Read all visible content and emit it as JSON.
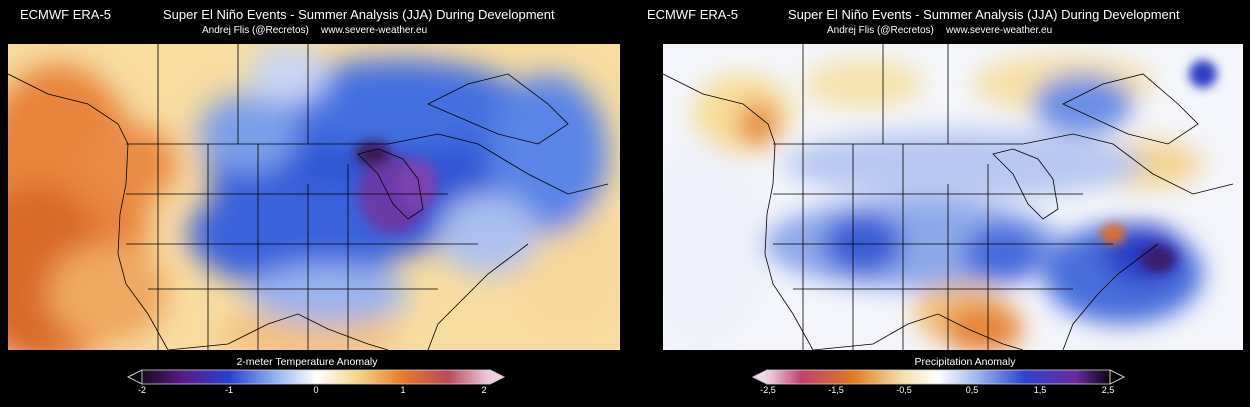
{
  "left": {
    "model": "ECMWF ERA-5",
    "title": "Super El Niño Events - Summer Analysis (JJA) During Development",
    "author": "Andrej Flis (@Recretos)",
    "site": "www.severe-weather.eu",
    "colorbar": {
      "label": "2-meter Temperature Anomaly",
      "ticks": [
        "-2",
        "-1",
        "0",
        "1",
        "2"
      ]
    }
  },
  "right": {
    "model": "ECMWF ERA-5",
    "title": "Super El Niño Events - Summer Analysis (JJA) During Development",
    "author": "Andrej Flis (@Recretos)",
    "site": "www.severe-weather.eu",
    "colorbar": {
      "label": "Precipitation Anomaly",
      "ticks": [
        "-2,5",
        "-1,5",
        "-0,5",
        "0,5",
        "1,5",
        "2,5"
      ]
    }
  }
}
